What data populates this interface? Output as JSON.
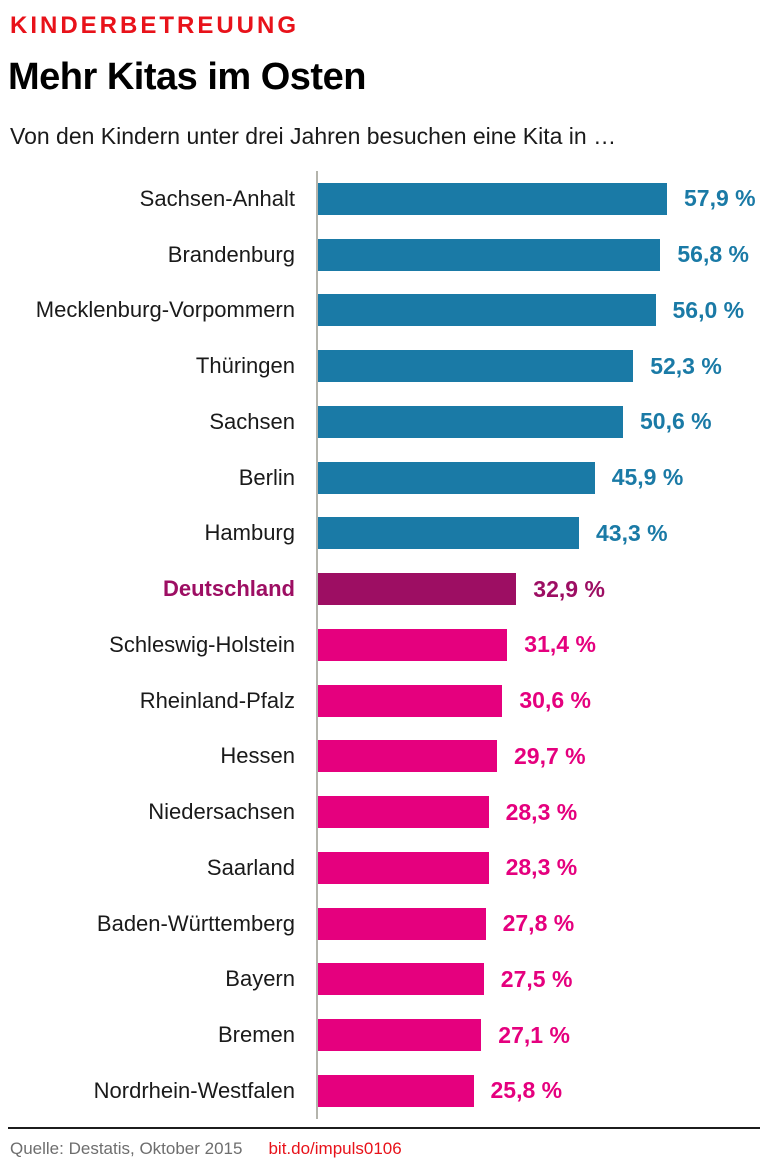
{
  "theme": {
    "red": "#e8121a",
    "text": "#1a1a1a",
    "muted": "#6e6e6e",
    "axis": "#b4b4ac",
    "background": "#ffffff"
  },
  "header": {
    "kicker": "KINDERBETREUUNG",
    "title": "Mehr Kitas im Osten",
    "subtitle": "Von den Kindern unter drei Jahren besuchen eine Kita in …"
  },
  "chart_data": {
    "type": "bar",
    "orientation": "horizontal",
    "title": "Mehr Kitas im Osten",
    "subtitle": "Von den Kindern unter drei Jahren besuchen eine Kita in …",
    "unit": "%",
    "xlim": [
      0,
      60
    ],
    "grid": false,
    "legend": false,
    "highlight": "Deutschland",
    "categories": [
      "Sachsen-Anhalt",
      "Brandenburg",
      "Mecklenburg-Vorpommern",
      "Thüringen",
      "Sachsen",
      "Berlin",
      "Hamburg",
      "Deutschland",
      "Schleswig-Holstein",
      "Rheinland-Pfalz",
      "Hessen",
      "Niedersachsen",
      "Saarland",
      "Baden-Württemberg",
      "Bayern",
      "Bremen",
      "Nordrhein-Westfalen"
    ],
    "values": [
      57.9,
      56.8,
      56.0,
      52.3,
      50.6,
      45.9,
      43.3,
      32.9,
      31.4,
      30.6,
      29.7,
      28.3,
      28.3,
      27.8,
      27.5,
      27.1,
      25.8
    ],
    "value_labels": [
      "57,9 %",
      "56,8 %",
      "56,0 %",
      "52,3 %",
      "50,6 %",
      "45,9 %",
      "43,3 %",
      "32,9 %",
      "31,4 %",
      "30,6 %",
      "29,7 %",
      "28,3 %",
      "28,3 %",
      "27,8 %",
      "27,5 %",
      "27,1 %",
      "25,8 %"
    ],
    "groups": [
      "ost",
      "ost",
      "ost",
      "ost",
      "ost",
      "ost",
      "ost",
      "deutschland",
      "west",
      "west",
      "west",
      "west",
      "west",
      "west",
      "west",
      "west",
      "west"
    ],
    "colors": {
      "ost": "#1a7aa6",
      "deutschland": "#9d0e63",
      "west": "#e5007e"
    }
  },
  "footer": {
    "source": "Quelle: Destatis, Oktober 2015",
    "link": "bit.do/impuls0106"
  }
}
